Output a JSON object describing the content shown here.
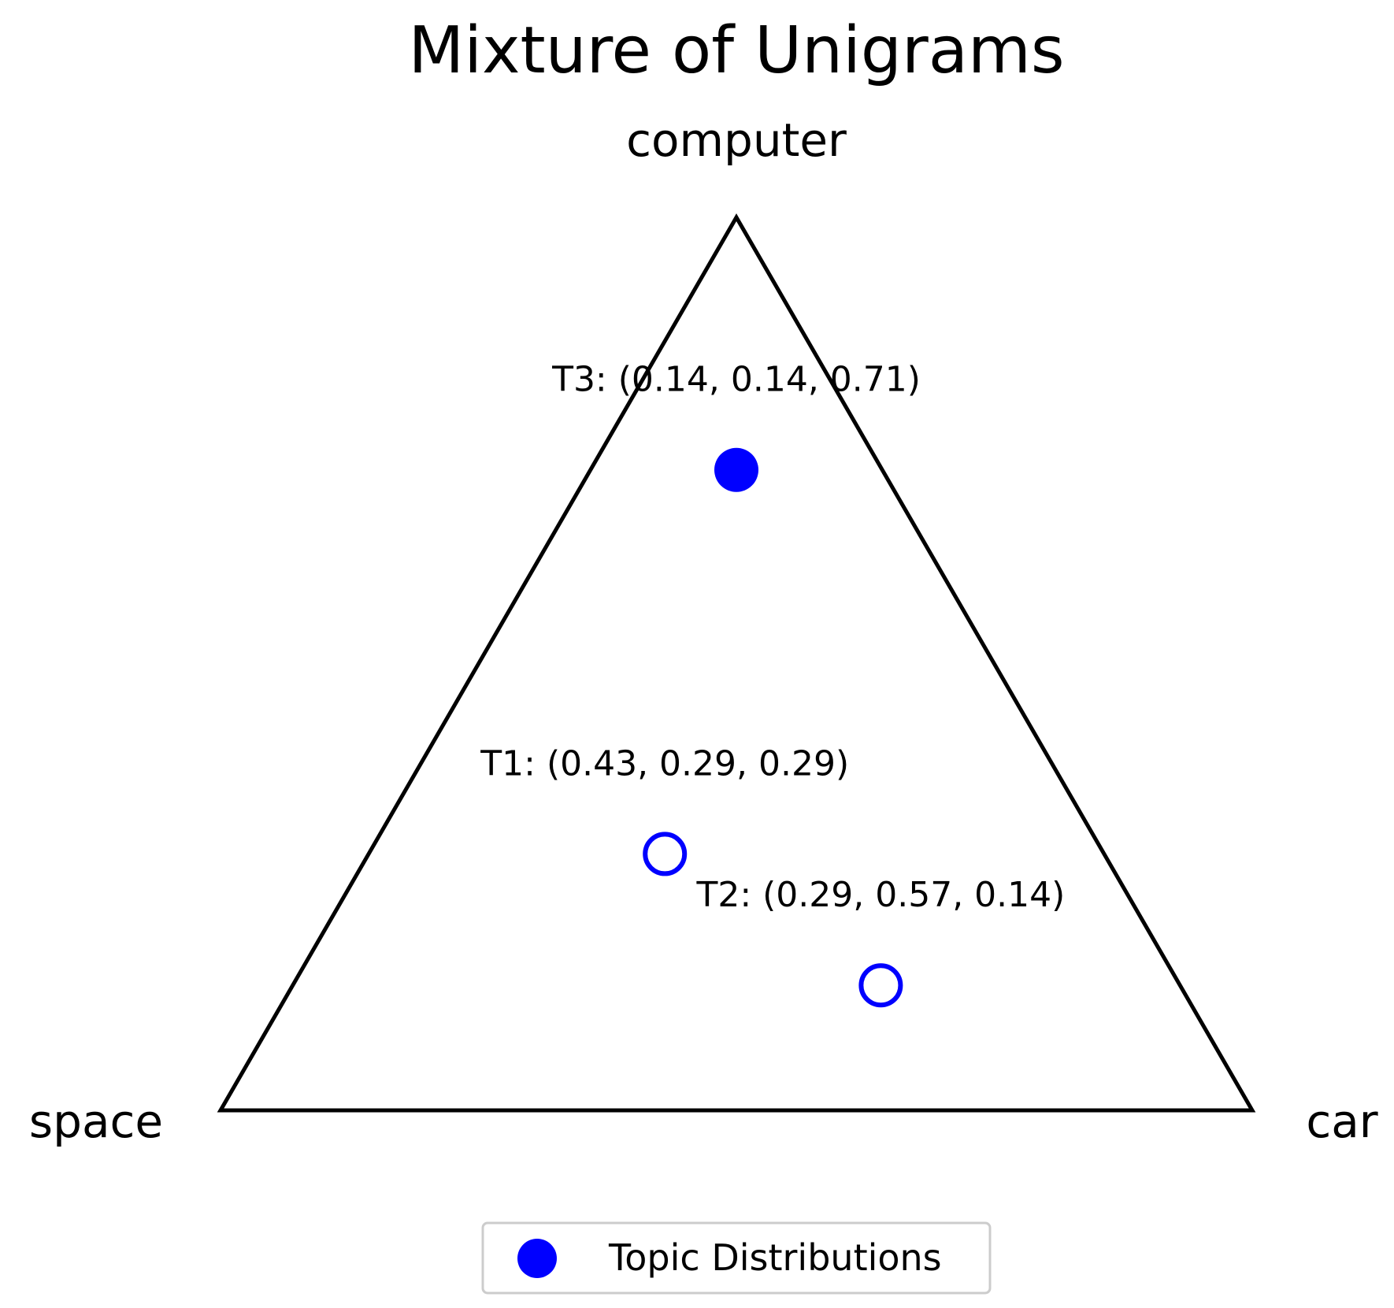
{
  "chart_data": {
    "type": "scatter",
    "subtype": "ternary-simplex",
    "title": "Mixture of Unigrams",
    "vertices": {
      "top": "computer",
      "bottom_left": "space",
      "bottom_right": "car"
    },
    "component_order": [
      "space",
      "car",
      "computer"
    ],
    "points": [
      {
        "label": "T1: (0.43, 0.29, 0.29)",
        "values": [
          0.43,
          0.29,
          0.29
        ],
        "filled": false
      },
      {
        "label": "T2: (0.29, 0.57, 0.14)",
        "values": [
          0.29,
          0.57,
          0.14
        ],
        "filled": false
      },
      {
        "label": "T3: (0.14, 0.14, 0.71)",
        "values": [
          0.14,
          0.14,
          0.71
        ],
        "filled": true
      }
    ],
    "legend": {
      "entries": [
        "Topic Distributions"
      ],
      "position": "bottom-center"
    },
    "marker_color": "#0000ff",
    "edge_color": "#000000",
    "grid": false
  }
}
